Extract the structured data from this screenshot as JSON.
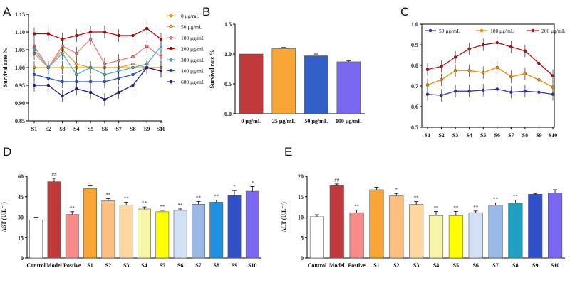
{
  "panels": [
    "A",
    "B",
    "C",
    "D",
    "E"
  ],
  "chart_data": [
    {
      "id": "A",
      "type": "line",
      "title": "",
      "xlabel": "",
      "ylabel": "Survival rate %",
      "ylim": [
        0.85,
        1.15
      ],
      "yticks": [
        "0.85",
        "0.90",
        "0.95",
        "1.00",
        "1.05",
        "1.10",
        "1.15"
      ],
      "categories": [
        "S1",
        "S2",
        "S3",
        "S4",
        "S5",
        "S6",
        "S7",
        "S8",
        "S9",
        "S10"
      ],
      "legend_position": "right",
      "series": [
        {
          "name": "0 μg/mL",
          "color": "#e8b400",
          "values": [
            1.0,
            1.0,
            1.0,
            1.0,
            1.0,
            1.0,
            1.0,
            1.0,
            1.0,
            1.0
          ]
        },
        {
          "name": "50 μg/mL",
          "color": "#f5a142",
          "values": [
            1.04,
            1.0,
            1.05,
            1.01,
            1.0,
            1.0,
            1.0,
            1.01,
            1.0,
            1.0
          ]
        },
        {
          "name": "100 μg/mL",
          "color": "#f08080",
          "values": [
            1.06,
            1.0,
            1.06,
            1.04,
            1.08,
            1.01,
            1.02,
            1.03,
            1.06,
            1.03
          ]
        },
        {
          "name": "200 μg/mL",
          "color": "#c00000",
          "values": [
            1.095,
            1.095,
            1.08,
            1.09,
            1.1,
            1.1,
            1.09,
            1.09,
            1.11,
            1.08
          ]
        },
        {
          "name": "300 μg/mL",
          "color": "#4fb3d9",
          "values": [
            1.05,
            1.0,
            1.04,
            0.98,
            1.0,
            0.98,
            0.99,
            1.0,
            1.01,
            1.06
          ]
        },
        {
          "name": "400 μg/mL",
          "color": "#2b55c8",
          "values": [
            0.98,
            0.97,
            0.96,
            0.96,
            0.96,
            0.96,
            0.97,
            0.98,
            1.0,
            0.99
          ]
        },
        {
          "name": "600 μg/mL",
          "color": "#1c1c8a",
          "values": [
            0.95,
            0.95,
            0.92,
            0.94,
            0.93,
            0.91,
            0.93,
            0.95,
            1.0,
            0.99
          ]
        }
      ]
    },
    {
      "id": "B",
      "type": "bar",
      "title": "",
      "xlabel": "",
      "ylabel": "Survival rate %",
      "ylim": [
        0.0,
        1.5
      ],
      "yticks": [
        "0.0",
        "0.5",
        "1.0",
        "1.5"
      ],
      "categories": [
        "0 μg/mL",
        "25 μg/mL",
        "50 μg/mL",
        "100 μg/mL"
      ],
      "values": [
        1.0,
        1.09,
        0.97,
        0.87
      ],
      "errors": [
        0.0,
        0.02,
        0.03,
        0.015
      ],
      "colors": [
        "#c0393b",
        "#f7a535",
        "#3060c8",
        "#7a68f0"
      ]
    },
    {
      "id": "C",
      "type": "line",
      "title": "",
      "xlabel": "",
      "ylabel": "",
      "ylim": [
        0.5,
        1.0
      ],
      "yticks": [
        "0.5",
        "0.6",
        "0.7",
        "0.8",
        "0.9",
        "1.0"
      ],
      "categories": [
        "S1",
        "S2",
        "S3",
        "S4",
        "S5",
        "S6",
        "S7",
        "S8",
        "S9",
        "S10"
      ],
      "legend_position": "top",
      "series": [
        {
          "name": "50 μg/mL",
          "color": "#3a2fb0",
          "values": [
            0.66,
            0.655,
            0.675,
            0.675,
            0.68,
            0.685,
            0.67,
            0.675,
            0.67,
            0.66
          ]
        },
        {
          "name": "100 μg/mL",
          "color": "#f08a00",
          "values": [
            0.705,
            0.73,
            0.775,
            0.775,
            0.765,
            0.79,
            0.745,
            0.76,
            0.73,
            0.695
          ]
        },
        {
          "name": "200 μg/mL",
          "color": "#b01010",
          "values": [
            0.78,
            0.795,
            0.84,
            0.88,
            0.9,
            0.91,
            0.89,
            0.87,
            0.81,
            0.75
          ]
        }
      ]
    },
    {
      "id": "D",
      "type": "bar",
      "title": "",
      "xlabel": "",
      "ylabel": "AST (U.L⁻¹)",
      "ylim": [
        0,
        60
      ],
      "yticks": [
        "0",
        "15",
        "30",
        "45",
        "60"
      ],
      "categories": [
        "Control",
        "Model",
        "Postive",
        "S1",
        "S2",
        "S3",
        "S4",
        "S5",
        "S6",
        "S7",
        "S8",
        "S9",
        "S10"
      ],
      "values": [
        28,
        56,
        32,
        51,
        42,
        39,
        36,
        34,
        35,
        39.5,
        41,
        46,
        49
      ],
      "errors": [
        1.5,
        2.5,
        2.0,
        2.0,
        1.5,
        2.0,
        1.5,
        1.0,
        1.0,
        2.0,
        1.5,
        3.5,
        3.5
      ],
      "annotations": [
        "",
        "##",
        "**",
        "",
        "**",
        "**",
        "**",
        "**",
        "**",
        "**",
        "**",
        "*",
        "*"
      ],
      "colors": [
        "#ffffff",
        "#c0393b",
        "#f88a8a",
        "#f7a535",
        "#fdbf80",
        "#fdd6a0",
        "#f6f5a8",
        "#ffff00",
        "#d2e0f5",
        "#9ab8e8",
        "#2090e0",
        "#3050c8",
        "#7a68f0"
      ]
    },
    {
      "id": "E",
      "type": "bar",
      "title": "",
      "xlabel": "",
      "ylabel": "ALT (U.L⁻¹)",
      "ylim": [
        0,
        20
      ],
      "yticks": [
        "0",
        "5",
        "10",
        "15",
        "20"
      ],
      "categories": [
        "Control",
        "Model",
        "Postive",
        "S1",
        "S2",
        "S3",
        "S4",
        "S5",
        "S6",
        "S7",
        "S8",
        "S9",
        "S10"
      ],
      "values": [
        10.1,
        17.7,
        11.1,
        16.7,
        15.2,
        13.1,
        10.4,
        10.4,
        11.1,
        12.9,
        13.4,
        15.6,
        15.9
      ],
      "errors": [
        0.5,
        0.4,
        0.6,
        0.6,
        0.6,
        0.7,
        1.0,
        1.0,
        0.4,
        0.6,
        0.8,
        0.2,
        0.8
      ],
      "annotations": [
        "",
        "##",
        "**",
        "",
        "*",
        "**",
        "**",
        "**",
        "**",
        "**",
        "**",
        "",
        ""
      ],
      "colors": [
        "#ffffff",
        "#c0393b",
        "#f88a8a",
        "#f7a535",
        "#fdbf80",
        "#fdd6a0",
        "#f6f5a8",
        "#ffff00",
        "#d2e0f5",
        "#9ab8e8",
        "#20a0c0",
        "#3050c8",
        "#7a68f0"
      ]
    }
  ]
}
